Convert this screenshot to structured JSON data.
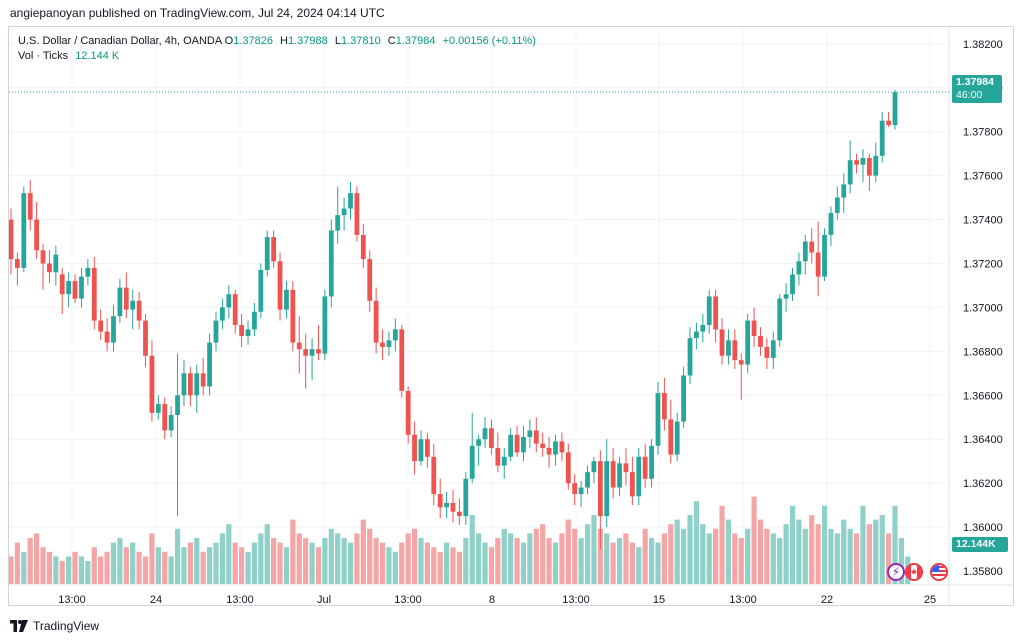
{
  "publisher_line": "angiepanoyan published on TradingView.com, Jul 24, 2024 04:14 UTC",
  "legend": {
    "symbol": "U.S. Dollar / Canadian Dollar, 4h, OANDA",
    "o_label": "O",
    "o": "1.37826",
    "h_label": "H",
    "h": "1.37988",
    "l_label": "L",
    "l": "1.37810",
    "c_label": "C",
    "c": "1.37984",
    "change": "+0.00156 (+0.11%)",
    "vol_label": "Vol · Ticks",
    "vol": "12.144 K"
  },
  "price_tag": {
    "price": "1.37984",
    "countdown": "46:00"
  },
  "vol_tag": "12.144K",
  "price_axis": [
    "1.38200",
    "1.38000",
    "1.37800",
    "1.37600",
    "1.37400",
    "1.37200",
    "1.37000",
    "1.36800",
    "1.36600",
    "1.36400",
    "1.36200",
    "1.36000",
    "1.35800"
  ],
  "time_axis": [
    "13:00",
    "24",
    "13:00",
    "Jul",
    "13:00",
    "8",
    "13:00",
    "15",
    "13:00",
    "22",
    "25"
  ],
  "events": [
    "bolt-icon",
    "canada-flag-icon",
    "us-flag-icon"
  ],
  "footer": {
    "brand": "TradingView"
  },
  "colors": {
    "up": "#26a69a",
    "down": "#ef5350",
    "vol_up": "#8fd1c9",
    "vol_down": "#f4a6a6",
    "grid": "#f0f3fa"
  },
  "chart_data": {
    "type": "candlestick",
    "symbol": "USDCAD",
    "timeframe": "4h",
    "y_range": [
      1.3575,
      1.3824
    ],
    "candles": [
      [
        1.374,
        1.3745,
        1.3715,
        1.3722
      ],
      [
        1.3722,
        1.3725,
        1.371,
        1.3718
      ],
      [
        1.3718,
        1.3755,
        1.3716,
        1.3752
      ],
      [
        1.3752,
        1.3758,
        1.3735,
        1.374
      ],
      [
        1.374,
        1.3748,
        1.3722,
        1.3726
      ],
      [
        1.3726,
        1.3729,
        1.3708,
        1.372
      ],
      [
        1.372,
        1.3726,
        1.3711,
        1.3716
      ],
      [
        1.3716,
        1.3728,
        1.371,
        1.3724
      ],
      [
        1.3715,
        1.3718,
        1.3697,
        1.3706
      ],
      [
        1.3706,
        1.3716,
        1.37,
        1.3712
      ],
      [
        1.3712,
        1.3715,
        1.3702,
        1.3704
      ],
      [
        1.3704,
        1.3718,
        1.37,
        1.3714
      ],
      [
        1.3714,
        1.3722,
        1.371,
        1.3718
      ],
      [
        1.3718,
        1.3723,
        1.369,
        1.3694
      ],
      [
        1.3694,
        1.3699,
        1.3685,
        1.3689
      ],
      [
        1.3689,
        1.3695,
        1.368,
        1.3684
      ],
      [
        1.3684,
        1.3701,
        1.368,
        1.3696
      ],
      [
        1.3696,
        1.3713,
        1.3693,
        1.3709
      ],
      [
        1.3709,
        1.3716,
        1.3695,
        1.3699
      ],
      [
        1.3699,
        1.3708,
        1.369,
        1.3703
      ],
      [
        1.3703,
        1.3707,
        1.369,
        1.3694
      ],
      [
        1.3694,
        1.3697,
        1.3673,
        1.3678
      ],
      [
        1.3678,
        1.3685,
        1.3648,
        1.3652
      ],
      [
        1.3652,
        1.366,
        1.3649,
        1.3656
      ],
      [
        1.3656,
        1.3659,
        1.364,
        1.3644
      ],
      [
        1.3644,
        1.3655,
        1.3641,
        1.3651
      ],
      [
        1.3651,
        1.3679,
        1.3605,
        1.366
      ],
      [
        1.366,
        1.3676,
        1.3655,
        1.367
      ],
      [
        1.367,
        1.3673,
        1.3655,
        1.366
      ],
      [
        1.366,
        1.3674,
        1.3652,
        1.367
      ],
      [
        1.367,
        1.3677,
        1.366,
        1.3664
      ],
      [
        1.3664,
        1.3688,
        1.366,
        1.3684
      ],
      [
        1.3684,
        1.3698,
        1.368,
        1.3694
      ],
      [
        1.3694,
        1.3704,
        1.369,
        1.37
      ],
      [
        1.37,
        1.371,
        1.3695,
        1.3706
      ],
      [
        1.3706,
        1.3708,
        1.3688,
        1.3692
      ],
      [
        1.3692,
        1.3697,
        1.3682,
        1.3687
      ],
      [
        1.3687,
        1.3694,
        1.3683,
        1.369
      ],
      [
        1.369,
        1.3702,
        1.3687,
        1.3698
      ],
      [
        1.3698,
        1.372,
        1.3695,
        1.3717
      ],
      [
        1.3717,
        1.3735,
        1.3714,
        1.3732
      ],
      [
        1.3732,
        1.3735,
        1.3718,
        1.3721
      ],
      [
        1.3721,
        1.3725,
        1.3694,
        1.3699
      ],
      [
        1.3699,
        1.3712,
        1.3695,
        1.3708
      ],
      [
        1.3708,
        1.3712,
        1.368,
        1.3684
      ],
      [
        1.3684,
        1.3696,
        1.367,
        1.3681
      ],
      [
        1.3681,
        1.3688,
        1.3663,
        1.3678
      ],
      [
        1.3678,
        1.3686,
        1.3667,
        1.3681
      ],
      [
        1.3681,
        1.3692,
        1.3676,
        1.3679
      ],
      [
        1.3679,
        1.3708,
        1.3676,
        1.3705
      ],
      [
        1.3705,
        1.374,
        1.37,
        1.3735
      ],
      [
        1.3735,
        1.3755,
        1.3729,
        1.3742
      ],
      [
        1.3742,
        1.375,
        1.3735,
        1.3745
      ],
      [
        1.3745,
        1.3757,
        1.374,
        1.3752
      ],
      [
        1.3752,
        1.3755,
        1.373,
        1.3733
      ],
      [
        1.3733,
        1.3738,
        1.3718,
        1.3722
      ],
      [
        1.3722,
        1.3726,
        1.3698,
        1.3703
      ],
      [
        1.3703,
        1.3709,
        1.3679,
        1.3684
      ],
      [
        1.3684,
        1.369,
        1.3676,
        1.3682
      ],
      [
        1.3682,
        1.3689,
        1.3678,
        1.3685
      ],
      [
        1.3685,
        1.3695,
        1.368,
        1.369
      ],
      [
        1.369,
        1.3692,
        1.3659,
        1.3662
      ],
      [
        1.3662,
        1.3664,
        1.3638,
        1.3642
      ],
      [
        1.3642,
        1.3648,
        1.3624,
        1.363
      ],
      [
        1.363,
        1.3644,
        1.3628,
        1.364
      ],
      [
        1.364,
        1.3643,
        1.3627,
        1.3632
      ],
      [
        1.3632,
        1.3638,
        1.361,
        1.3615
      ],
      [
        1.3615,
        1.3622,
        1.3604,
        1.3609
      ],
      [
        1.3609,
        1.3616,
        1.3604,
        1.3611
      ],
      [
        1.3611,
        1.3617,
        1.3602,
        1.3607
      ],
      [
        1.3607,
        1.3613,
        1.3601,
        1.3605
      ],
      [
        1.3605,
        1.3625,
        1.3601,
        1.3622
      ],
      [
        1.3622,
        1.3652,
        1.362,
        1.3637
      ],
      [
        1.3637,
        1.3642,
        1.3628,
        1.364
      ],
      [
        1.364,
        1.365,
        1.3636,
        1.3645
      ],
      [
        1.3645,
        1.3649,
        1.3633,
        1.3636
      ],
      [
        1.3636,
        1.3643,
        1.3625,
        1.3628
      ],
      [
        1.3628,
        1.3636,
        1.3622,
        1.3632
      ],
      [
        1.3632,
        1.3645,
        1.363,
        1.3642
      ],
      [
        1.3642,
        1.3646,
        1.3632,
        1.3634
      ],
      [
        1.3634,
        1.3646,
        1.363,
        1.3641
      ],
      [
        1.3641,
        1.3649,
        1.3636,
        1.3644
      ],
      [
        1.3644,
        1.365,
        1.3634,
        1.3638
      ],
      [
        1.3638,
        1.3643,
        1.3632,
        1.3636
      ],
      [
        1.3636,
        1.3641,
        1.3627,
        1.3633
      ],
      [
        1.3633,
        1.3642,
        1.3628,
        1.3639
      ],
      [
        1.3639,
        1.3643,
        1.363,
        1.3634
      ],
      [
        1.3634,
        1.3638,
        1.3617,
        1.362
      ],
      [
        1.362,
        1.3624,
        1.361,
        1.3615
      ],
      [
        1.3615,
        1.3621,
        1.3609,
        1.3618
      ],
      [
        1.3618,
        1.3628,
        1.3615,
        1.3625
      ],
      [
        1.3625,
        1.3632,
        1.362,
        1.363
      ],
      [
        1.363,
        1.3635,
        1.359,
        1.3605
      ],
      [
        1.3605,
        1.364,
        1.36,
        1.363
      ],
      [
        1.363,
        1.3636,
        1.3613,
        1.3618
      ],
      [
        1.3618,
        1.3632,
        1.3614,
        1.3629
      ],
      [
        1.3629,
        1.3636,
        1.3619,
        1.3625
      ],
      [
        1.3625,
        1.3632,
        1.361,
        1.3614
      ],
      [
        1.3614,
        1.3636,
        1.361,
        1.3632
      ],
      [
        1.3632,
        1.3638,
        1.3618,
        1.3622
      ],
      [
        1.3622,
        1.364,
        1.3618,
        1.3637
      ],
      [
        1.3637,
        1.3666,
        1.3633,
        1.3661
      ],
      [
        1.3661,
        1.3668,
        1.3644,
        1.3649
      ],
      [
        1.3649,
        1.3658,
        1.3629,
        1.3633
      ],
      [
        1.3633,
        1.3652,
        1.363,
        1.3648
      ],
      [
        1.3648,
        1.3673,
        1.3645,
        1.3669
      ],
      [
        1.3669,
        1.3691,
        1.3665,
        1.3686
      ],
      [
        1.3686,
        1.3693,
        1.3681,
        1.3689
      ],
      [
        1.3689,
        1.3697,
        1.3684,
        1.3692
      ],
      [
        1.3692,
        1.3708,
        1.3688,
        1.3705
      ],
      [
        1.3705,
        1.3708,
        1.3684,
        1.369
      ],
      [
        1.369,
        1.3695,
        1.3674,
        1.3678
      ],
      [
        1.3678,
        1.369,
        1.3674,
        1.3685
      ],
      [
        1.3685,
        1.369,
        1.3672,
        1.3676
      ],
      [
        1.3676,
        1.3679,
        1.3658,
        1.3674
      ],
      [
        1.3674,
        1.3697,
        1.367,
        1.3694
      ],
      [
        1.3694,
        1.37,
        1.3682,
        1.3687
      ],
      [
        1.3687,
        1.3691,
        1.3678,
        1.3682
      ],
      [
        1.3682,
        1.3686,
        1.3672,
        1.3677
      ],
      [
        1.3677,
        1.3689,
        1.3672,
        1.3685
      ],
      [
        1.3685,
        1.3706,
        1.3682,
        1.3704
      ],
      [
        1.3704,
        1.3711,
        1.3698,
        1.3706
      ],
      [
        1.3706,
        1.3718,
        1.3703,
        1.3715
      ],
      [
        1.3715,
        1.3725,
        1.371,
        1.3721
      ],
      [
        1.3721,
        1.3733,
        1.3715,
        1.373
      ],
      [
        1.373,
        1.3736,
        1.372,
        1.3725
      ],
      [
        1.3725,
        1.3739,
        1.3705,
        1.3714
      ],
      [
        1.3714,
        1.3736,
        1.3712,
        1.3733
      ],
      [
        1.3733,
        1.3746,
        1.3728,
        1.3743
      ],
      [
        1.3743,
        1.3755,
        1.374,
        1.375
      ],
      [
        1.375,
        1.3761,
        1.3743,
        1.3756
      ],
      [
        1.3756,
        1.3776,
        1.3752,
        1.3767
      ],
      [
        1.3767,
        1.377,
        1.3761,
        1.3765
      ],
      [
        1.3765,
        1.3772,
        1.3757,
        1.3768
      ],
      [
        1.3768,
        1.377,
        1.3753,
        1.376
      ],
      [
        1.376,
        1.3775,
        1.3757,
        1.3769
      ],
      [
        1.3769,
        1.3789,
        1.3766,
        1.3785
      ],
      [
        1.3785,
        1.3789,
        1.3782,
        1.3783
      ],
      [
        1.3783,
        1.3799,
        1.3781,
        1.3798
      ]
    ],
    "volumes": [
      0.3,
      0.45,
      0.35,
      0.5,
      0.55,
      0.4,
      0.35,
      0.3,
      0.25,
      0.3,
      0.35,
      0.3,
      0.25,
      0.4,
      0.3,
      0.35,
      0.45,
      0.5,
      0.4,
      0.45,
      0.35,
      0.3,
      0.55,
      0.4,
      0.35,
      0.3,
      0.6,
      0.4,
      0.45,
      0.5,
      0.35,
      0.4,
      0.45,
      0.55,
      0.65,
      0.45,
      0.4,
      0.35,
      0.45,
      0.55,
      0.65,
      0.5,
      0.45,
      0.4,
      0.7,
      0.55,
      0.5,
      0.45,
      0.4,
      0.5,
      0.6,
      0.55,
      0.5,
      0.45,
      0.55,
      0.7,
      0.6,
      0.5,
      0.45,
      0.4,
      0.35,
      0.45,
      0.55,
      0.6,
      0.5,
      0.45,
      0.4,
      0.35,
      0.45,
      0.4,
      0.35,
      0.5,
      0.75,
      0.55,
      0.45,
      0.4,
      0.5,
      0.6,
      0.55,
      0.5,
      0.45,
      0.55,
      0.6,
      0.65,
      0.5,
      0.45,
      0.55,
      0.7,
      0.6,
      0.5,
      0.65,
      0.75,
      0.6,
      0.55,
      0.45,
      0.5,
      0.55,
      0.45,
      0.4,
      0.6,
      0.5,
      0.45,
      0.55,
      0.65,
      0.7,
      0.6,
      0.75,
      0.9,
      0.65,
      0.55,
      0.6,
      0.85,
      0.7,
      0.55,
      0.5,
      0.6,
      0.95,
      0.7,
      0.6,
      0.55,
      0.5,
      0.65,
      0.85,
      0.7,
      0.6,
      0.75,
      0.65,
      0.85,
      0.6,
      0.55,
      0.7,
      0.6,
      0.55,
      0.85,
      0.65,
      0.7,
      0.75,
      0.55,
      0.85,
      0.5,
      0.3
    ]
  }
}
